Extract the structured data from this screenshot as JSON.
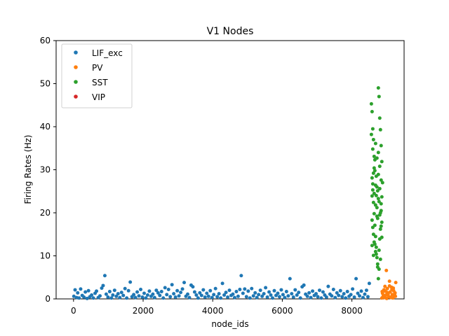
{
  "chart_data": {
    "type": "scatter",
    "title": "V1 Nodes",
    "xlabel": "node_ids",
    "ylabel": "Firing Rates (Hz)",
    "xlim": [
      -500,
      9500
    ],
    "ylim": [
      0,
      60
    ],
    "x_ticks": [
      0,
      2000,
      4000,
      6000,
      8000
    ],
    "y_ticks": [
      0,
      10,
      20,
      30,
      40,
      50,
      60
    ],
    "grid": false,
    "legend_position": "top-left",
    "series": [
      {
        "name": "LIF_exc",
        "color": "#1f77b4",
        "points": [
          [
            10,
            0.6
          ],
          [
            45,
            2.1
          ],
          [
            90,
            0.3
          ],
          [
            120,
            1.4
          ],
          [
            160,
            0.2
          ],
          [
            205,
            2.3
          ],
          [
            250,
            0.8
          ],
          [
            300,
            0.4
          ],
          [
            340,
            1.6
          ],
          [
            390,
            0.1
          ],
          [
            430,
            1.9
          ],
          [
            470,
            0.5
          ],
          [
            520,
            0.9
          ],
          [
            570,
            0.2
          ],
          [
            620,
            1.3
          ],
          [
            660,
            1.8
          ],
          [
            710,
            0.3
          ],
          [
            760,
            0.7
          ],
          [
            810,
            2.5
          ],
          [
            850,
            3.1
          ],
          [
            900,
            5.4
          ],
          [
            940,
            1.1
          ],
          [
            990,
            0.4
          ],
          [
            1040,
            1.7
          ],
          [
            1090,
            0.2
          ],
          [
            1130,
            0.9
          ],
          [
            1180,
            2.0
          ],
          [
            1230,
            0.6
          ],
          [
            1280,
            1.2
          ],
          [
            1330,
            0.3
          ],
          [
            1380,
            1.5
          ],
          [
            1430,
            0.8
          ],
          [
            1480,
            2.4
          ],
          [
            1530,
            0.2
          ],
          [
            1580,
            1.9
          ],
          [
            1630,
            3.9
          ],
          [
            1680,
            0.5
          ],
          [
            1730,
            1.0
          ],
          [
            1780,
            0.3
          ],
          [
            1830,
            1.6
          ],
          [
            1880,
            0.7
          ],
          [
            1930,
            2.2
          ],
          [
            1980,
            0.4
          ],
          [
            2030,
            1.3
          ],
          [
            2080,
            0.2
          ],
          [
            2130,
            0.9
          ],
          [
            2180,
            1.8
          ],
          [
            2230,
            0.6
          ],
          [
            2280,
            1.1
          ],
          [
            2330,
            0.3
          ],
          [
            2380,
            2.0
          ],
          [
            2430,
            1.4
          ],
          [
            2480,
            0.8
          ],
          [
            2530,
            1.7
          ],
          [
            2580,
            0.2
          ],
          [
            2630,
            2.6
          ],
          [
            2680,
            1.0
          ],
          [
            2730,
            2.2
          ],
          [
            2780,
            0.5
          ],
          [
            2830,
            3.3
          ],
          [
            2880,
            1.2
          ],
          [
            2930,
            0.4
          ],
          [
            2980,
            1.9
          ],
          [
            3030,
            0.7
          ],
          [
            3080,
            1.5
          ],
          [
            3130,
            2.3
          ],
          [
            3180,
            3.8
          ],
          [
            3230,
            0.6
          ],
          [
            3280,
            1.1
          ],
          [
            3330,
            0.3
          ],
          [
            3380,
            3.2
          ],
          [
            3430,
            2.8
          ],
          [
            3480,
            1.6
          ],
          [
            3530,
            0.9
          ],
          [
            3580,
            0.2
          ],
          [
            3630,
            1.4
          ],
          [
            3680,
            0.8
          ],
          [
            3730,
            2.1
          ],
          [
            3780,
            0.4
          ],
          [
            3830,
            1.3
          ],
          [
            3880,
            0.6
          ],
          [
            3930,
            1.9
          ],
          [
            3980,
            0.3
          ],
          [
            4030,
            1.0
          ],
          [
            4080,
            2.4
          ],
          [
            4130,
            0.5
          ],
          [
            4180,
            1.2
          ],
          [
            4230,
            0.2
          ],
          [
            4280,
            3.6
          ],
          [
            4330,
            0.9
          ],
          [
            4380,
            1.5
          ],
          [
            4430,
            0.4
          ],
          [
            4480,
            2.0
          ],
          [
            4530,
            0.8
          ],
          [
            4580,
            1.1
          ],
          [
            4630,
            0.3
          ],
          [
            4680,
            1.7
          ],
          [
            4730,
            0.6
          ],
          [
            4780,
            2.2
          ],
          [
            4820,
            5.4
          ],
          [
            4870,
            1.3
          ],
          [
            4920,
            2.3
          ],
          [
            4970,
            0.5
          ],
          [
            5020,
            1.8
          ],
          [
            5070,
            0.2
          ],
          [
            5120,
            2.4
          ],
          [
            5170,
            0.7
          ],
          [
            5220,
            1.4
          ],
          [
            5270,
            0.3
          ],
          [
            5320,
            1.0
          ],
          [
            5370,
            2.0
          ],
          [
            5420,
            0.6
          ],
          [
            5470,
            1.2
          ],
          [
            5520,
            2.6
          ],
          [
            5570,
            0.4
          ],
          [
            5620,
            1.6
          ],
          [
            5670,
            0.9
          ],
          [
            5720,
            0.2
          ],
          [
            5770,
            1.9
          ],
          [
            5820,
            0.8
          ],
          [
            5870,
            1.3
          ],
          [
            5920,
            0.5
          ],
          [
            5970,
            2.1
          ],
          [
            6020,
            1.0
          ],
          [
            6070,
            0.3
          ],
          [
            6120,
            1.7
          ],
          [
            6170,
            0.7
          ],
          [
            6220,
            4.7
          ],
          [
            6270,
            1.2
          ],
          [
            6320,
            0.4
          ],
          [
            6370,
            2.1
          ],
          [
            6420,
            0.9
          ],
          [
            6470,
            1.5
          ],
          [
            6520,
            0.2
          ],
          [
            6570,
            2.8
          ],
          [
            6620,
            3.2
          ],
          [
            6670,
            1.1
          ],
          [
            6720,
            0.6
          ],
          [
            6770,
            1.4
          ],
          [
            6820,
            0.3
          ],
          [
            6870,
            1.8
          ],
          [
            6920,
            0.8
          ],
          [
            6970,
            1.2
          ],
          [
            7020,
            0.5
          ],
          [
            7070,
            2.0
          ],
          [
            7120,
            0.2
          ],
          [
            7170,
            1.6
          ],
          [
            7220,
            0.9
          ],
          [
            7270,
            0.4
          ],
          [
            7320,
            2.9
          ],
          [
            7370,
            1.1
          ],
          [
            7420,
            0.7
          ],
          [
            7470,
            2.2
          ],
          [
            7520,
            0.3
          ],
          [
            7570,
            1.4
          ],
          [
            7620,
            0.8
          ],
          [
            7670,
            1.9
          ],
          [
            7720,
            0.5
          ],
          [
            7770,
            1.2
          ],
          [
            7820,
            0.2
          ],
          [
            7870,
            1.7
          ],
          [
            7920,
            0.6
          ],
          [
            7970,
            1.0
          ],
          [
            8020,
            2.3
          ],
          [
            8070,
            0.4
          ],
          [
            8120,
            4.7
          ],
          [
            8170,
            1.3
          ],
          [
            8220,
            0.7
          ],
          [
            8270,
            1.8
          ],
          [
            8320,
            0.3
          ],
          [
            8370,
            1.1
          ],
          [
            8420,
            2.0
          ],
          [
            8460,
            0.5
          ],
          [
            8500,
            3.6
          ]
        ]
      },
      {
        "name": "PV",
        "color": "#ff7f0e",
        "points": [
          [
            8860,
            0.2
          ],
          [
            8880,
            1.3
          ],
          [
            8900,
            0.6
          ],
          [
            8920,
            2.1
          ],
          [
            8940,
            0.3
          ],
          [
            8960,
            1.8
          ],
          [
            8980,
            0.9
          ],
          [
            9000,
            0.1
          ],
          [
            9020,
            2.4
          ],
          [
            9040,
            1.1
          ],
          [
            9060,
            0.5
          ],
          [
            9080,
            3.0
          ],
          [
            9100,
            1.6
          ],
          [
            9120,
            0.4
          ],
          [
            9140,
            2.7
          ],
          [
            9160,
            1.0
          ],
          [
            9180,
            0.2
          ],
          [
            9200,
            1.9
          ],
          [
            9220,
            0.7
          ],
          [
            9240,
            1.4
          ],
          [
            9260,
            3.8
          ],
          [
            8990,
            6.6
          ],
          [
            9080,
            4.1
          ],
          [
            9150,
            2.2
          ],
          [
            8910,
            0.8
          ],
          [
            9010,
            1.5
          ],
          [
            9110,
            0.3
          ],
          [
            9190,
            2.5
          ],
          [
            9230,
            1.2
          ],
          [
            9250,
            0.6
          ],
          [
            8870,
            1.7
          ],
          [
            8950,
            2.9
          ]
        ]
      },
      {
        "name": "SST",
        "color": "#2ca02c",
        "points": [
          [
            8560,
            45.3
          ],
          [
            8580,
            43.5
          ],
          [
            8600,
            39.5
          ],
          [
            8620,
            37.0
          ],
          [
            8640,
            33.1
          ],
          [
            8660,
            29.8
          ],
          [
            8680,
            26.4
          ],
          [
            8700,
            24.0
          ],
          [
            8720,
            21.2
          ],
          [
            8740,
            18.7
          ],
          [
            8760,
            49.0
          ],
          [
            8780,
            47.0
          ],
          [
            8800,
            42.0
          ],
          [
            8820,
            39.3
          ],
          [
            8840,
            35.6
          ],
          [
            8860,
            31.9
          ],
          [
            8580,
            28.1
          ],
          [
            8600,
            25.3
          ],
          [
            8620,
            22.4
          ],
          [
            8640,
            19.8
          ],
          [
            8660,
            17.1
          ],
          [
            8680,
            14.5
          ],
          [
            8700,
            12.0
          ],
          [
            8720,
            9.6
          ],
          [
            8740,
            7.4
          ],
          [
            8760,
            4.7
          ],
          [
            8780,
            11.3
          ],
          [
            8800,
            13.9
          ],
          [
            8820,
            16.2
          ],
          [
            8840,
            20.5
          ],
          [
            8860,
            23.7
          ],
          [
            8880,
            27.0
          ],
          [
            8560,
            38.2
          ],
          [
            8600,
            34.8
          ],
          [
            8640,
            30.4
          ],
          [
            8680,
            36.1
          ],
          [
            8720,
            32.7
          ],
          [
            8760,
            28.9
          ],
          [
            8800,
            25.6
          ],
          [
            8840,
            22.1
          ],
          [
            8580,
            18.3
          ],
          [
            8620,
            15.0
          ],
          [
            8660,
            12.7
          ],
          [
            8700,
            10.4
          ],
          [
            8740,
            8.1
          ],
          [
            8780,
            6.9
          ],
          [
            8820,
            9.2
          ],
          [
            8860,
            14.3
          ],
          [
            8600,
            26.7
          ],
          [
            8640,
            24.5
          ],
          [
            8680,
            21.8
          ],
          [
            8720,
            19.2
          ],
          [
            8760,
            34.0
          ],
          [
            8800,
            30.8
          ],
          [
            8840,
            27.6
          ],
          [
            8580,
            23.9
          ],
          [
            8620,
            29.2
          ],
          [
            8660,
            32.3
          ],
          [
            8700,
            28.5
          ],
          [
            8740,
            25.1
          ],
          [
            8780,
            22.6
          ],
          [
            8820,
            20.0
          ],
          [
            8860,
            17.8
          ],
          [
            8600,
            16.6
          ],
          [
            8640,
            13.2
          ],
          [
            8680,
            11.0
          ],
          [
            8720,
            26.0
          ],
          [
            8760,
            23.3
          ],
          [
            8800,
            19.5
          ],
          [
            8840,
            16.9
          ],
          [
            8580,
            12.4
          ],
          [
            8620,
            10.1
          ]
        ]
      },
      {
        "name": "VIP",
        "color": "#d62728",
        "points": []
      }
    ]
  }
}
